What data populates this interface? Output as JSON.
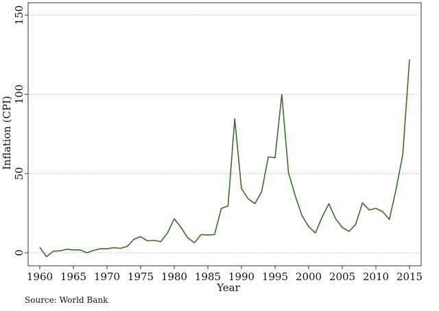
{
  "chart_data": {
    "type": "line",
    "title": "",
    "xlabel": "Year",
    "ylabel": "Inflation (CPI)",
    "xlim": [
      1960,
      2015
    ],
    "ylim": [
      0,
      150
    ],
    "x_ticks": [
      1960,
      1965,
      1970,
      1975,
      1980,
      1985,
      1990,
      1995,
      2000,
      2005,
      2010,
      2015
    ],
    "y_ticks": [
      0,
      50,
      100,
      150
    ],
    "grid": "horizontal dotted",
    "line_color": "#3a6b2a",
    "grid_color": "#d9a0a0",
    "series": [
      {
        "x": [
          1960,
          1961,
          1962,
          1963,
          1964,
          1965,
          1966,
          1967,
          1968,
          1969,
          1970,
          1971,
          1972,
          1973,
          1974,
          1975,
          1976,
          1977,
          1978,
          1979,
          1980,
          1981,
          1982,
          1983,
          1984,
          1985,
          1986,
          1987,
          1988,
          1989,
          1990,
          1991,
          1992,
          1993,
          1994,
          1995,
          1996,
          1997,
          1998,
          1999,
          2000,
          2001,
          2002,
          2003,
          2004,
          2005,
          2006,
          2007,
          2008,
          2009,
          2010,
          2011,
          2012,
          2013,
          2014,
          2015
        ],
        "y": [
          3.5,
          -2.5,
          1,
          1.2,
          2.2,
          1.8,
          1.8,
          0,
          1.5,
          2.5,
          2.5,
          3.2,
          2.8,
          4,
          8.5,
          10.2,
          7.5,
          7.8,
          7,
          12.5,
          21.5,
          16,
          9.5,
          6.3,
          11.5,
          11.2,
          11.5,
          28,
          29.5,
          84.5,
          40.5,
          34,
          31,
          38.5,
          60.5,
          60,
          100,
          50.5,
          36,
          23.5,
          16.5,
          12.5,
          22.5,
          31,
          21.5,
          16,
          13.5,
          18,
          31.5,
          27,
          28,
          26,
          21,
          40,
          62,
          122
        ]
      }
    ]
  },
  "source_note": "Source: World Bank"
}
